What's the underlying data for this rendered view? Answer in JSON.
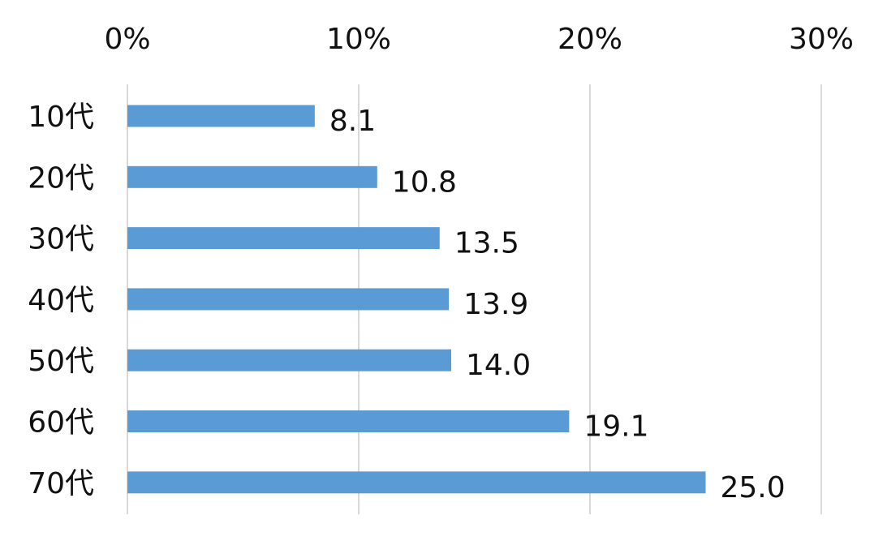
{
  "chart_data": {
    "type": "bar",
    "orientation": "horizontal",
    "categories": [
      "10代",
      "20代",
      "30代",
      "40代",
      "50代",
      "60代",
      "70代"
    ],
    "values": [
      8.1,
      10.8,
      13.5,
      13.9,
      14.0,
      19.1,
      25.0
    ],
    "value_labels": [
      "8.1",
      "10.8",
      "13.5",
      "13.9",
      "14.0",
      "19.1",
      "25.0"
    ],
    "xlim": [
      0,
      30
    ],
    "xticks": [
      0,
      10,
      20,
      30
    ],
    "xtick_labels": [
      "0%",
      "10%",
      "20%",
      "30%"
    ],
    "x_axis_position": "top",
    "grid": true,
    "legend": "none",
    "bar_color": "#5b9bd5",
    "gridline_color": "#d9d9d9"
  }
}
